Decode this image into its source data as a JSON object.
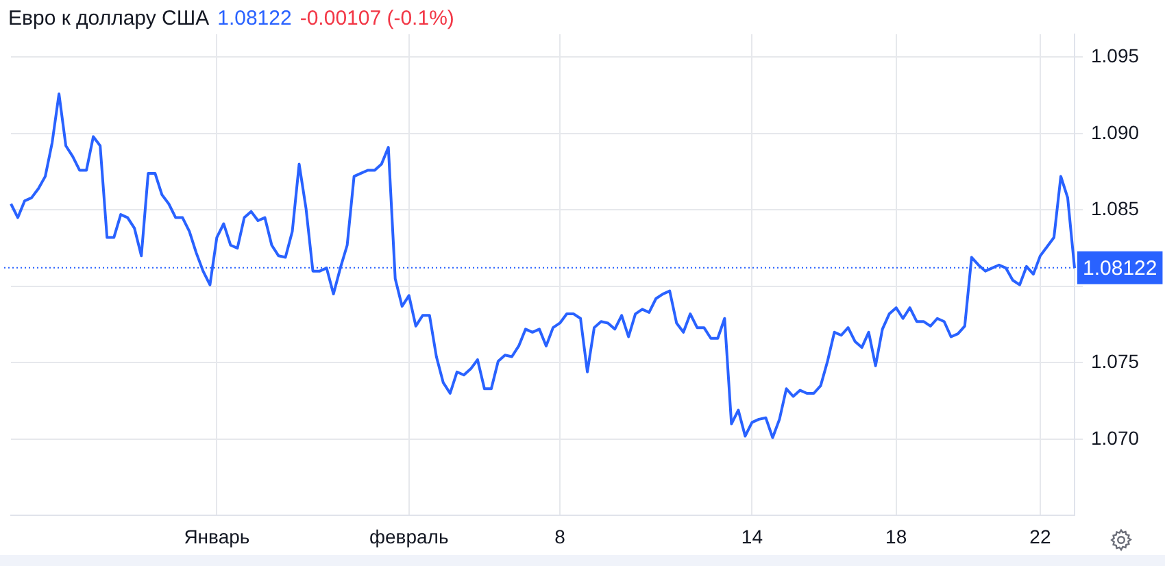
{
  "chart_data": {
    "type": "line",
    "title": "Евро к доллару США",
    "annotations": [
      "1.08122",
      "-0.00107 (-0.1%)"
    ],
    "categories": [
      null,
      null,
      null,
      null,
      null,
      null,
      null,
      null,
      null,
      null,
      null,
      null,
      null,
      null,
      null,
      null,
      null,
      null,
      null,
      null,
      null,
      null,
      null,
      null,
      null,
      null,
      null,
      null,
      null,
      null,
      "Январь",
      null,
      null,
      null,
      null,
      null,
      null,
      null,
      null,
      null,
      null,
      null,
      null,
      null,
      null,
      null,
      null,
      null,
      null,
      null,
      null,
      null,
      null,
      null,
      null,
      null,
      null,
      null,
      "февраль",
      null,
      null,
      null,
      null,
      null,
      null,
      null,
      null,
      null,
      null,
      null,
      null,
      null,
      null,
      null,
      null,
      null,
      null,
      null,
      null,
      null,
      "8",
      null,
      null,
      null,
      null,
      null,
      null,
      null,
      null,
      null,
      null,
      null,
      null,
      null,
      null,
      null,
      null,
      null,
      null,
      null,
      null,
      null,
      null,
      null,
      null,
      null,
      null,
      null,
      "14",
      null,
      null,
      null,
      null,
      null,
      null,
      null,
      null,
      null,
      null,
      null,
      null,
      null,
      null,
      null,
      null,
      null,
      null,
      null,
      null,
      "18",
      null,
      null,
      null,
      null,
      null,
      null,
      null,
      null,
      null,
      null,
      null,
      null,
      null,
      null,
      null,
      null,
      null,
      null,
      null,
      null,
      "22",
      null,
      null,
      null,
      null,
      null
    ],
    "series": [
      {
        "color": "#2962ff",
        "values": [
          1.0854,
          1.0845,
          1.0856,
          1.0858,
          1.0864,
          1.0872,
          1.0894,
          1.0926,
          1.0892,
          1.0885,
          1.0876,
          1.0876,
          1.0898,
          1.0892,
          1.0832,
          1.0832,
          1.0847,
          1.0845,
          1.0838,
          1.082,
          1.0874,
          1.0874,
          1.086,
          1.0854,
          1.0845,
          1.0845,
          1.0836,
          1.0822,
          1.081,
          1.0801,
          1.0832,
          1.0841,
          1.0827,
          1.0825,
          1.0845,
          1.0849,
          1.0843,
          1.0845,
          1.0827,
          1.082,
          1.0819,
          1.0836,
          1.088,
          1.0851,
          1.081,
          1.081,
          1.0812,
          1.0795,
          1.0812,
          1.0827,
          1.0872,
          1.0874,
          1.0876,
          1.0876,
          1.088,
          1.0891,
          1.0805,
          1.0787,
          1.0794,
          1.0774,
          1.0781,
          1.0781,
          1.0754,
          1.0737,
          1.073,
          1.0744,
          1.0742,
          1.0746,
          1.0752,
          1.0733,
          1.0733,
          1.0751,
          1.0755,
          1.0754,
          1.0761,
          1.0772,
          1.077,
          1.0772,
          1.0761,
          1.0773,
          1.0776,
          1.0782,
          1.0782,
          1.0779,
          1.0744,
          1.0773,
          1.0777,
          1.0776,
          1.0772,
          1.0781,
          1.0767,
          1.0782,
          1.0785,
          1.0783,
          1.0792,
          1.0795,
          1.0797,
          1.0776,
          1.077,
          1.0782,
          1.0773,
          1.0773,
          1.0766,
          1.0766,
          1.0779,
          1.071,
          1.0719,
          1.0702,
          1.0711,
          1.0713,
          1.0714,
          1.0701,
          1.0713,
          1.0733,
          1.0728,
          1.0732,
          1.073,
          1.073,
          1.0735,
          1.0751,
          1.077,
          1.0768,
          1.0773,
          1.0764,
          1.076,
          1.077,
          1.0748,
          1.0772,
          1.0782,
          1.0786,
          1.0779,
          1.0786,
          1.0777,
          1.0777,
          1.0774,
          1.0779,
          1.0777,
          1.0767,
          1.0769,
          1.0774,
          1.0819,
          1.0814,
          1.081,
          1.0812,
          1.0814,
          1.0812,
          1.0804,
          1.0801,
          1.0813,
          1.0808,
          1.082,
          1.0826,
          1.0832,
          1.0872,
          1.0858,
          1.0812
        ]
      }
    ],
    "ylim": [
      1.065,
      1.0965
    ],
    "yticks": [
      {
        "value": 1.07,
        "label": "1.070"
      },
      {
        "value": 1.075,
        "label": "1.075"
      },
      {
        "value": 1.08,
        "label": null
      },
      {
        "value": 1.085,
        "label": "1.085"
      },
      {
        "value": 1.09,
        "label": "1.090"
      },
      {
        "value": 1.095,
        "label": "1.095"
      }
    ],
    "ref_lines": [
      {
        "axis": "y",
        "value": 1.08122,
        "label": "1.08122",
        "color": "#2962ff",
        "line_style": "dotted"
      }
    ],
    "grid": true
  }
}
